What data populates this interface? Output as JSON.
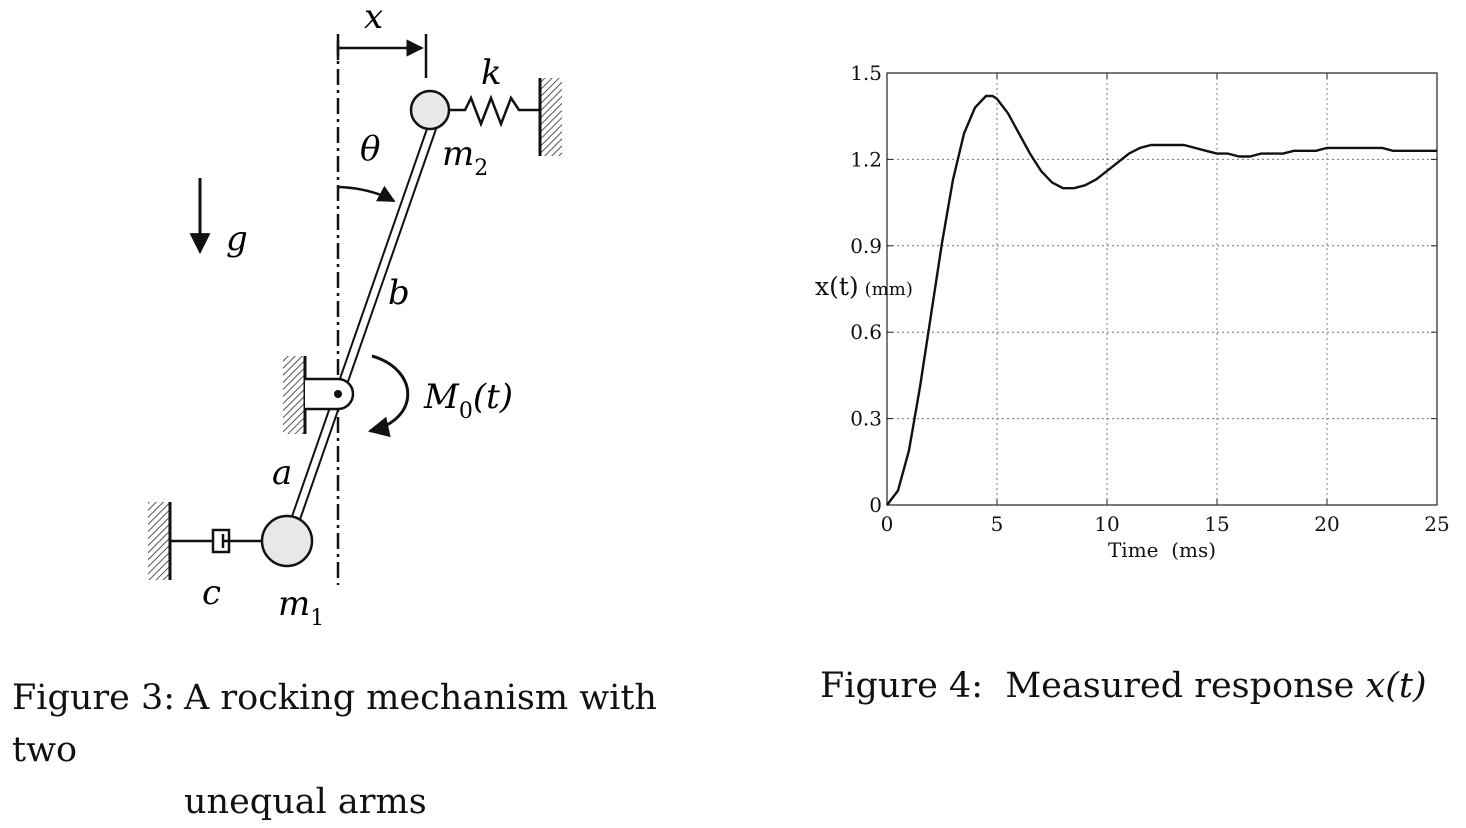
{
  "figure3": {
    "caption_number": "Figure 3:",
    "caption_line1": "A rocking mechanism with two",
    "caption_line2": "unequal arms",
    "labels": {
      "x": "x",
      "k": "k",
      "theta": "θ",
      "m2_base": "m",
      "m2_sub": "2",
      "g": "g",
      "b": "b",
      "M0_base": "M",
      "M0_sub": "0",
      "M0_arg": "(t)",
      "a": "a",
      "c": "c",
      "m1_base": "m",
      "m1_sub": "1"
    }
  },
  "figure4": {
    "caption_number": "Figure 4:",
    "caption_text": "Measured response",
    "caption_math": "x(t)",
    "ylabel_main": "x(t)",
    "ylabel_unit": "(mm)",
    "xlabel": "Time  (ms)"
  },
  "chart_data": {
    "type": "line",
    "xlabel": "Time  (ms)",
    "ylabel": "x(t) (mm)",
    "xlim": [
      0,
      25
    ],
    "ylim": [
      0,
      1.5
    ],
    "xticks": [
      0,
      5,
      10,
      15,
      20,
      25
    ],
    "yticks": [
      0,
      0.3,
      0.6,
      0.9,
      1.2,
      1.5
    ],
    "ytick_labels": [
      "0",
      "0.3",
      "0.6",
      "0.9",
      "1.2",
      "1.5"
    ],
    "grid": true,
    "series": [
      {
        "x": [
          0,
          0.5,
          1,
          1.5,
          2,
          2.5,
          3,
          3.5,
          4,
          4.5,
          4.8,
          5,
          5.5,
          6,
          6.5,
          7,
          7.5,
          8,
          8.5,
          9,
          9.5,
          10,
          10.5,
          11,
          11.5,
          12,
          12.5,
          13,
          13.5,
          14,
          14.5,
          15,
          15.5,
          16,
          16.5,
          17,
          17.5,
          18,
          18.5,
          19,
          19.5,
          20,
          20.5,
          21,
          21.5,
          22,
          22.5,
          23,
          23.5,
          24,
          24.5,
          25
        ],
        "y": [
          0,
          0.05,
          0.19,
          0.41,
          0.66,
          0.91,
          1.13,
          1.29,
          1.38,
          1.42,
          1.42,
          1.41,
          1.36,
          1.29,
          1.22,
          1.16,
          1.12,
          1.1,
          1.1,
          1.11,
          1.13,
          1.16,
          1.19,
          1.22,
          1.24,
          1.25,
          1.25,
          1.25,
          1.25,
          1.24,
          1.23,
          1.22,
          1.22,
          1.21,
          1.21,
          1.22,
          1.22,
          1.22,
          1.23,
          1.23,
          1.23,
          1.24,
          1.24,
          1.24,
          1.24,
          1.24,
          1.24,
          1.23,
          1.23,
          1.23,
          1.23,
          1.23
        ]
      }
    ]
  }
}
